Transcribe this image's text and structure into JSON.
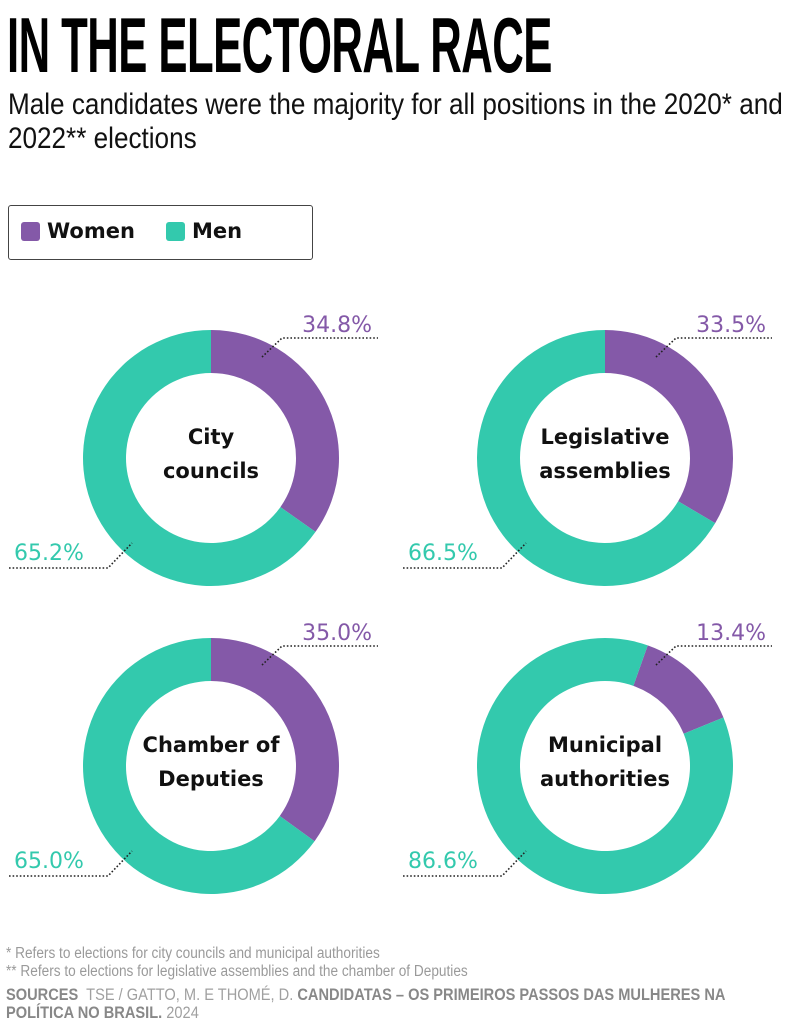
{
  "header": {
    "title": "IN THE ELECTORAL RACE",
    "subtitle": "Male candidates were the majority for all positions in the 2020* and 2022** elections"
  },
  "colors": {
    "women": "#8459A8",
    "men": "#33C9AD",
    "leader": "#222222"
  },
  "chart_data": {
    "type": "pie",
    "variant": "donut",
    "title": "IN THE ELECTORAL RACE",
    "subtitle": "Male candidates were the majority for all positions in the 2020* and 2022** elections",
    "legend": {
      "placement": "top-left",
      "entries": [
        {
          "name": "Women",
          "color": "#8459A8"
        },
        {
          "name": "Men",
          "color": "#33C9AD"
        }
      ]
    },
    "charts": [
      {
        "label_lines": [
          "City",
          "councils"
        ],
        "slices": [
          {
            "name": "Women",
            "value": 34.8,
            "label": "34.8%"
          },
          {
            "name": "Men",
            "value": 65.2,
            "label": "65.2%"
          }
        ],
        "women_start_angle_deg": 0
      },
      {
        "label_lines": [
          "Legislative",
          "assemblies"
        ],
        "slices": [
          {
            "name": "Women",
            "value": 33.5,
            "label": "33.5%"
          },
          {
            "name": "Men",
            "value": 66.5,
            "label": "66.5%"
          }
        ],
        "women_start_angle_deg": 0
      },
      {
        "label_lines": [
          "Chamber of",
          "Deputies"
        ],
        "slices": [
          {
            "name": "Women",
            "value": 35.0,
            "label": "35.0%"
          },
          {
            "name": "Men",
            "value": 65.0,
            "label": "65.0%"
          }
        ],
        "women_start_angle_deg": 0
      },
      {
        "label_lines": [
          "Municipal",
          "authorities"
        ],
        "slices": [
          {
            "name": "Women",
            "value": 13.4,
            "label": "13.4%"
          },
          {
            "name": "Men",
            "value": 86.6,
            "label": "86.6%"
          }
        ],
        "women_start_angle_deg": 19.5
      }
    ]
  },
  "footer": {
    "footnote_1": "* Refers to elections for city councils and municipal authorities",
    "footnote_2": "** Refers to elections for legislative assemblies and the chamber of Deputies",
    "sources_label": "SOURCES",
    "sources_authors": "TSE / GATTO, M. E THOMÉ, D.",
    "sources_title": "CANDIDATAS – OS PRIMEIROS PASSOS DAS MULHERES NA POLÍTICA NO BRASIL.",
    "sources_year": "2024"
  }
}
